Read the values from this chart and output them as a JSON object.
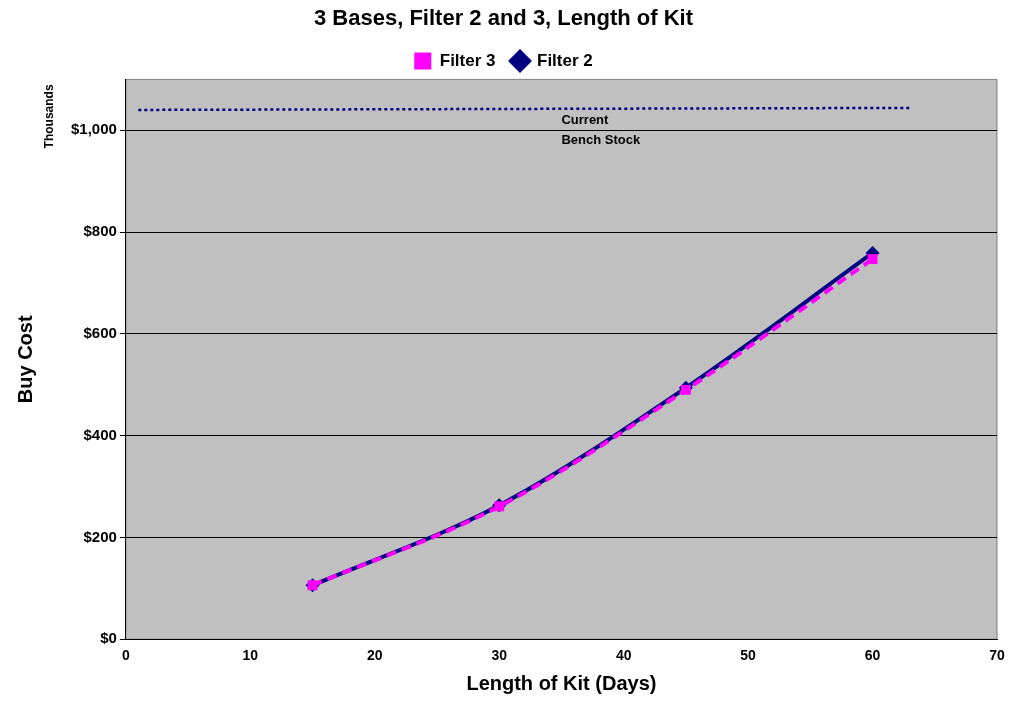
{
  "chart_data": {
    "type": "line",
    "title": "3 Bases, Filter 2 and 3, Length of Kit",
    "xlabel": "Length of Kit (Days)",
    "ylabel": "Buy Cost",
    "x": [
      15,
      30,
      45,
      60
    ],
    "series": [
      {
        "name": "Filter 2",
        "color": "#000080",
        "values": [
          106,
          263,
          494,
          759
        ],
        "marker": "diamond",
        "line_style": "solid"
      },
      {
        "name": "Filter 3",
        "color": "#ff00ff",
        "values": [
          106,
          261,
          490,
          747
        ],
        "marker": "square",
        "line_style": "dashed"
      },
      {
        "type": "line",
        "x": [
          1,
          63
        ],
        "color": "#000080",
        "values": [
          1040,
          1044
        ],
        "marker": "none",
        "line_style": "dotted"
      }
    ],
    "xlim": [
      0,
      70
    ],
    "xticks": [
      0,
      10,
      20,
      30,
      40,
      50,
      60,
      70
    ],
    "ylim": [
      0,
      1100
    ],
    "yticks": [
      {
        "value": 0,
        "label": "$0"
      },
      {
        "value": 200,
        "label": "$200"
      },
      {
        "value": 400,
        "label": "$400"
      },
      {
        "value": 600,
        "label": "$600"
      },
      {
        "value": 800,
        "label": "$800"
      },
      {
        "value": 1000,
        "label": "$1,000"
      }
    ],
    "grid": "y",
    "legend": "top",
    "annotations": [
      "Thousands",
      {
        "text": "Current\nBench Stock",
        "x": 35,
        "y": 1040
      }
    ]
  }
}
